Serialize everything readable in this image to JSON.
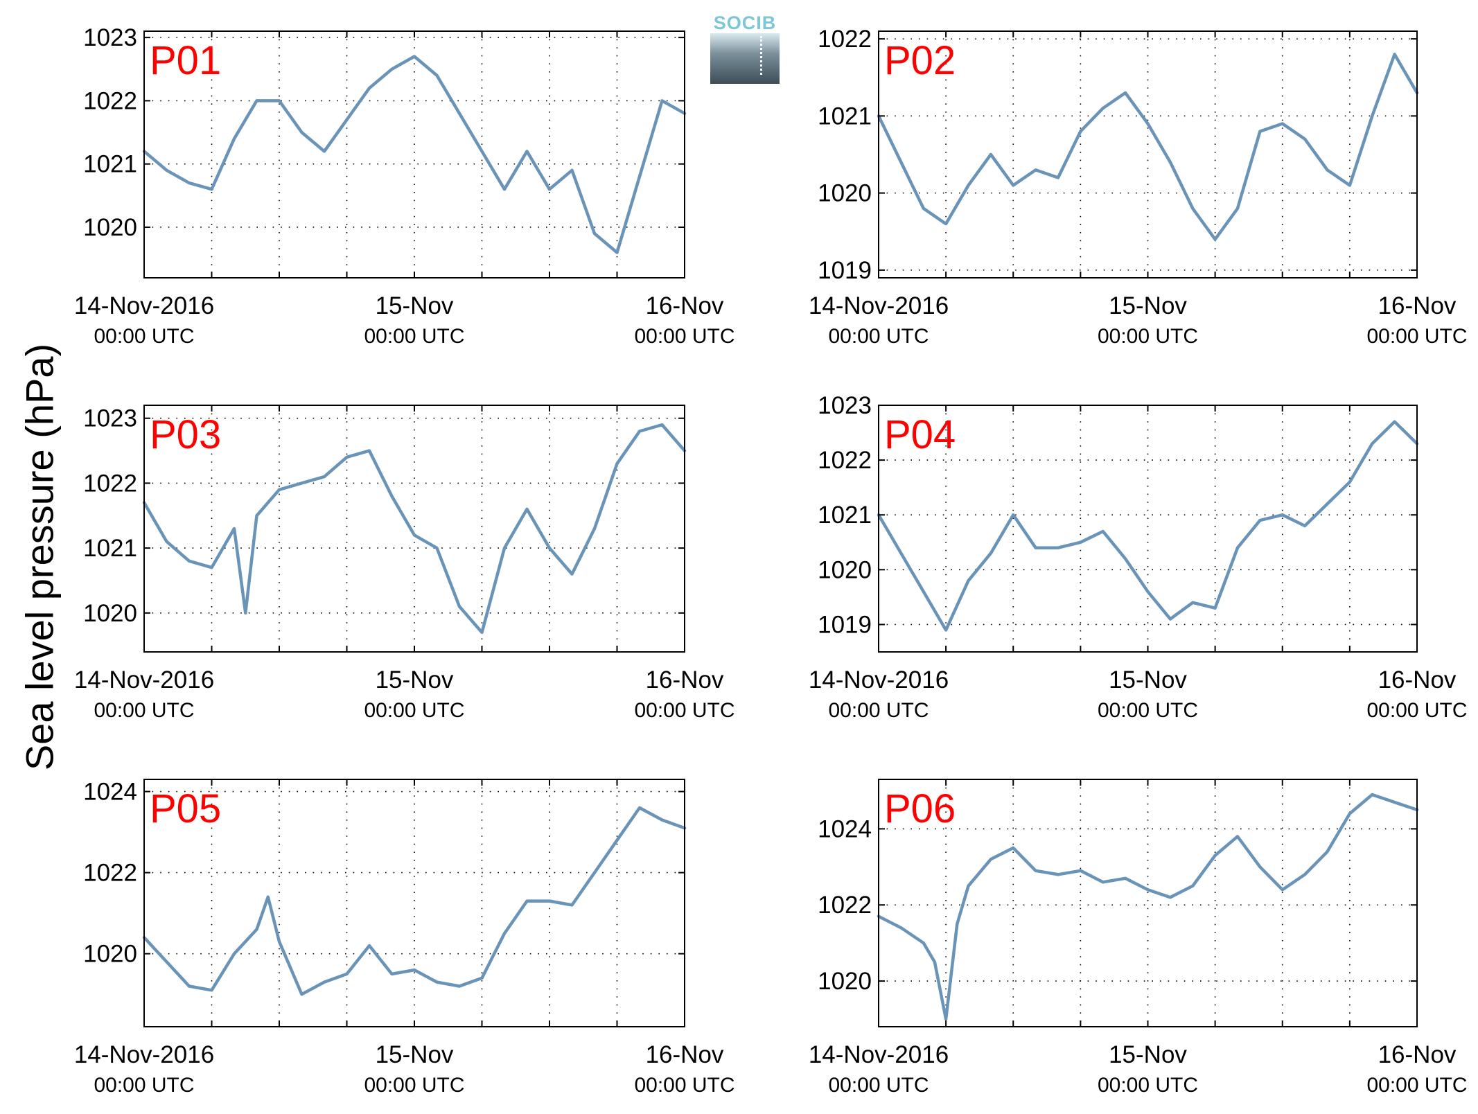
{
  "figure": {
    "ylabel": "Sea level pressure (hPa)",
    "logo_text": "SOCIB"
  },
  "chart_data": [
    {
      "type": "line",
      "panel": "P01",
      "x_range": [
        "2016-11-14 00:00",
        "2016-11-16 00:00"
      ],
      "ylim": [
        1019.2,
        1023.1
      ],
      "yticks": [
        1020,
        1021,
        1022,
        1023
      ],
      "xticks": [
        {
          "label": "14-Nov-2016",
          "sub": "00:00 UTC"
        },
        {
          "label": "15-Nov",
          "sub": "00:00 UTC"
        },
        {
          "label": "16-Nov",
          "sub": "00:00 UTC"
        }
      ],
      "grid": true,
      "color": "#6a93b8",
      "series": [
        {
          "x_hours": [
            0,
            2,
            4,
            6,
            8,
            10,
            12,
            14,
            16,
            18,
            20,
            22,
            24,
            26,
            28,
            30,
            32,
            34,
            36,
            38,
            40,
            42,
            44,
            46,
            48
          ],
          "values": [
            1021.2,
            1020.9,
            1020.7,
            1020.6,
            1021.4,
            1022.0,
            1022.0,
            1021.5,
            1021.2,
            1021.7,
            1022.2,
            1022.5,
            1022.7,
            1022.4,
            1021.8,
            1021.2,
            1020.6,
            1021.2,
            1020.6,
            1020.9,
            1019.9,
            1019.6,
            1020.8,
            1022.0,
            1021.8
          ]
        }
      ]
    },
    {
      "type": "line",
      "panel": "P02",
      "x_range": [
        "2016-11-14 00:00",
        "2016-11-16 00:00"
      ],
      "ylim": [
        1018.9,
        1022.1
      ],
      "yticks": [
        1019,
        1020,
        1021,
        1022
      ],
      "xticks": [
        {
          "label": "14-Nov-2016",
          "sub": "00:00 UTC"
        },
        {
          "label": "15-Nov",
          "sub": "00:00 UTC"
        },
        {
          "label": "16-Nov",
          "sub": "00:00 UTC"
        }
      ],
      "grid": true,
      "color": "#6a93b8",
      "series": [
        {
          "x_hours": [
            0,
            2,
            4,
            6,
            8,
            10,
            12,
            14,
            16,
            18,
            20,
            22,
            24,
            26,
            28,
            30,
            32,
            34,
            36,
            38,
            40,
            42,
            44,
            46,
            48
          ],
          "values": [
            1021.0,
            1020.4,
            1019.8,
            1019.6,
            1020.1,
            1020.5,
            1020.1,
            1020.3,
            1020.2,
            1020.8,
            1021.1,
            1021.3,
            1020.9,
            1020.4,
            1019.8,
            1019.4,
            1019.8,
            1020.8,
            1020.9,
            1020.7,
            1020.3,
            1020.1,
            1021.0,
            1021.8,
            1021.3
          ]
        }
      ]
    },
    {
      "type": "line",
      "panel": "P03",
      "x_range": [
        "2016-11-14 00:00",
        "2016-11-16 00:00"
      ],
      "ylim": [
        1019.4,
        1023.2
      ],
      "yticks": [
        1020,
        1021,
        1022,
        1023
      ],
      "xticks": [
        {
          "label": "14-Nov-2016",
          "sub": "00:00 UTC"
        },
        {
          "label": "15-Nov",
          "sub": "00:00 UTC"
        },
        {
          "label": "16-Nov",
          "sub": "00:00 UTC"
        }
      ],
      "grid": true,
      "color": "#6a93b8",
      "series": [
        {
          "x_hours": [
            0,
            2,
            4,
            6,
            8,
            9,
            10,
            12,
            14,
            16,
            18,
            20,
            22,
            24,
            26,
            28,
            30,
            32,
            34,
            36,
            38,
            40,
            42,
            44,
            46,
            48
          ],
          "values": [
            1021.7,
            1021.1,
            1020.8,
            1020.7,
            1021.3,
            1020.0,
            1021.5,
            1021.9,
            1022.0,
            1022.1,
            1022.4,
            1022.5,
            1021.8,
            1021.2,
            1021.0,
            1020.1,
            1019.7,
            1021.0,
            1021.6,
            1021.0,
            1020.6,
            1021.3,
            1022.3,
            1022.8,
            1022.9,
            1022.5
          ]
        }
      ]
    },
    {
      "type": "line",
      "panel": "P04",
      "x_range": [
        "2016-11-14 00:00",
        "2016-11-16 00:00"
      ],
      "ylim": [
        1018.5,
        1023.0
      ],
      "yticks": [
        1019,
        1020,
        1021,
        1022,
        1023
      ],
      "xticks": [
        {
          "label": "14-Nov-2016",
          "sub": "00:00 UTC"
        },
        {
          "label": "15-Nov",
          "sub": "00:00 UTC"
        },
        {
          "label": "16-Nov",
          "sub": "00:00 UTC"
        }
      ],
      "grid": true,
      "color": "#6a93b8",
      "series": [
        {
          "x_hours": [
            0,
            2,
            4,
            6,
            8,
            10,
            12,
            14,
            16,
            18,
            20,
            22,
            24,
            26,
            28,
            30,
            32,
            34,
            36,
            38,
            40,
            42,
            44,
            46,
            48
          ],
          "values": [
            1021.0,
            1020.3,
            1019.6,
            1018.9,
            1019.8,
            1020.3,
            1021.0,
            1020.4,
            1020.4,
            1020.5,
            1020.7,
            1020.2,
            1019.6,
            1019.1,
            1019.4,
            1019.3,
            1020.4,
            1020.9,
            1021.0,
            1020.8,
            1021.2,
            1021.6,
            1022.3,
            1022.7,
            1022.3
          ]
        }
      ]
    },
    {
      "type": "line",
      "panel": "P05",
      "x_range": [
        "2016-11-14 00:00",
        "2016-11-16 00:00"
      ],
      "ylim": [
        1018.2,
        1024.3
      ],
      "yticks": [
        1020,
        1022,
        1024
      ],
      "xticks": [
        {
          "label": "14-Nov-2016",
          "sub": "00:00 UTC"
        },
        {
          "label": "15-Nov",
          "sub": "00:00 UTC"
        },
        {
          "label": "16-Nov",
          "sub": "00:00 UTC"
        }
      ],
      "grid": true,
      "color": "#6a93b8",
      "series": [
        {
          "x_hours": [
            0,
            2,
            4,
            6,
            8,
            10,
            11,
            12,
            14,
            16,
            18,
            20,
            22,
            24,
            26,
            28,
            30,
            32,
            34,
            36,
            38,
            40,
            42,
            44,
            46,
            48
          ],
          "values": [
            1020.4,
            1019.8,
            1019.2,
            1019.1,
            1020.0,
            1020.6,
            1021.4,
            1020.3,
            1019.0,
            1019.3,
            1019.5,
            1020.2,
            1019.5,
            1019.6,
            1019.3,
            1019.2,
            1019.4,
            1020.5,
            1021.3,
            1021.3,
            1021.2,
            1022.0,
            1022.8,
            1023.6,
            1023.3,
            1023.1
          ]
        }
      ]
    },
    {
      "type": "line",
      "panel": "P06",
      "x_range": [
        "2016-11-14 00:00",
        "2016-11-16 00:00"
      ],
      "ylim": [
        1018.8,
        1025.3
      ],
      "yticks": [
        1020,
        1022,
        1024
      ],
      "xticks": [
        {
          "label": "14-Nov-2016",
          "sub": "00:00 UTC"
        },
        {
          "label": "15-Nov",
          "sub": "00:00 UTC"
        },
        {
          "label": "16-Nov",
          "sub": "00:00 UTC"
        }
      ],
      "grid": true,
      "color": "#6a93b8",
      "series": [
        {
          "x_hours": [
            0,
            2,
            4,
            5,
            6,
            7,
            8,
            10,
            12,
            14,
            16,
            18,
            20,
            22,
            24,
            26,
            28,
            30,
            32,
            34,
            36,
            38,
            40,
            42,
            44,
            46,
            48
          ],
          "values": [
            1021.7,
            1021.4,
            1021.0,
            1020.5,
            1019.0,
            1021.5,
            1022.5,
            1023.2,
            1023.5,
            1022.9,
            1022.8,
            1022.9,
            1022.6,
            1022.7,
            1022.4,
            1022.2,
            1022.5,
            1023.3,
            1023.8,
            1023.0,
            1022.4,
            1022.8,
            1023.4,
            1024.4,
            1024.9,
            1024.7,
            1024.5
          ]
        }
      ]
    }
  ]
}
